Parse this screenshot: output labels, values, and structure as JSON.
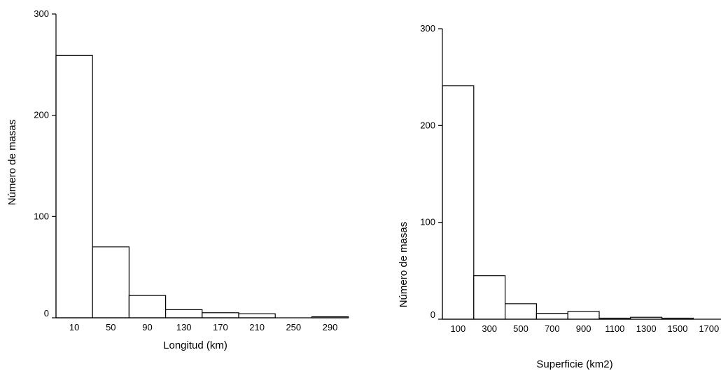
{
  "chart_data": [
    {
      "type": "bar",
      "categories": [
        "10",
        "50",
        "90",
        "130",
        "170",
        "210",
        "250",
        "290"
      ],
      "values": [
        259,
        70,
        22,
        8,
        5,
        4,
        0,
        1
      ],
      "xlabel": "Longitud (km)",
      "ylabel": "Número de masas",
      "ylim": [
        0,
        300
      ],
      "yticks": [
        "0",
        "100",
        "200",
        "300"
      ],
      "grid": false,
      "bar_fill": "#ffffff",
      "bar_stroke": "#000000"
    },
    {
      "type": "bar",
      "categories": [
        "100",
        "300",
        "500",
        "700",
        "900",
        "1100",
        "1300",
        "1500",
        "1700"
      ],
      "values": [
        241,
        45,
        16,
        6,
        8,
        1,
        2,
        1,
        0
      ],
      "xlabel": "Superficie (km2)",
      "ylabel": "Número de masas",
      "ylim": [
        0,
        300
      ],
      "yticks": [
        "0",
        "100",
        "200",
        "300"
      ],
      "grid": false,
      "bar_fill": "#ffffff",
      "bar_stroke": "#000000"
    }
  ]
}
